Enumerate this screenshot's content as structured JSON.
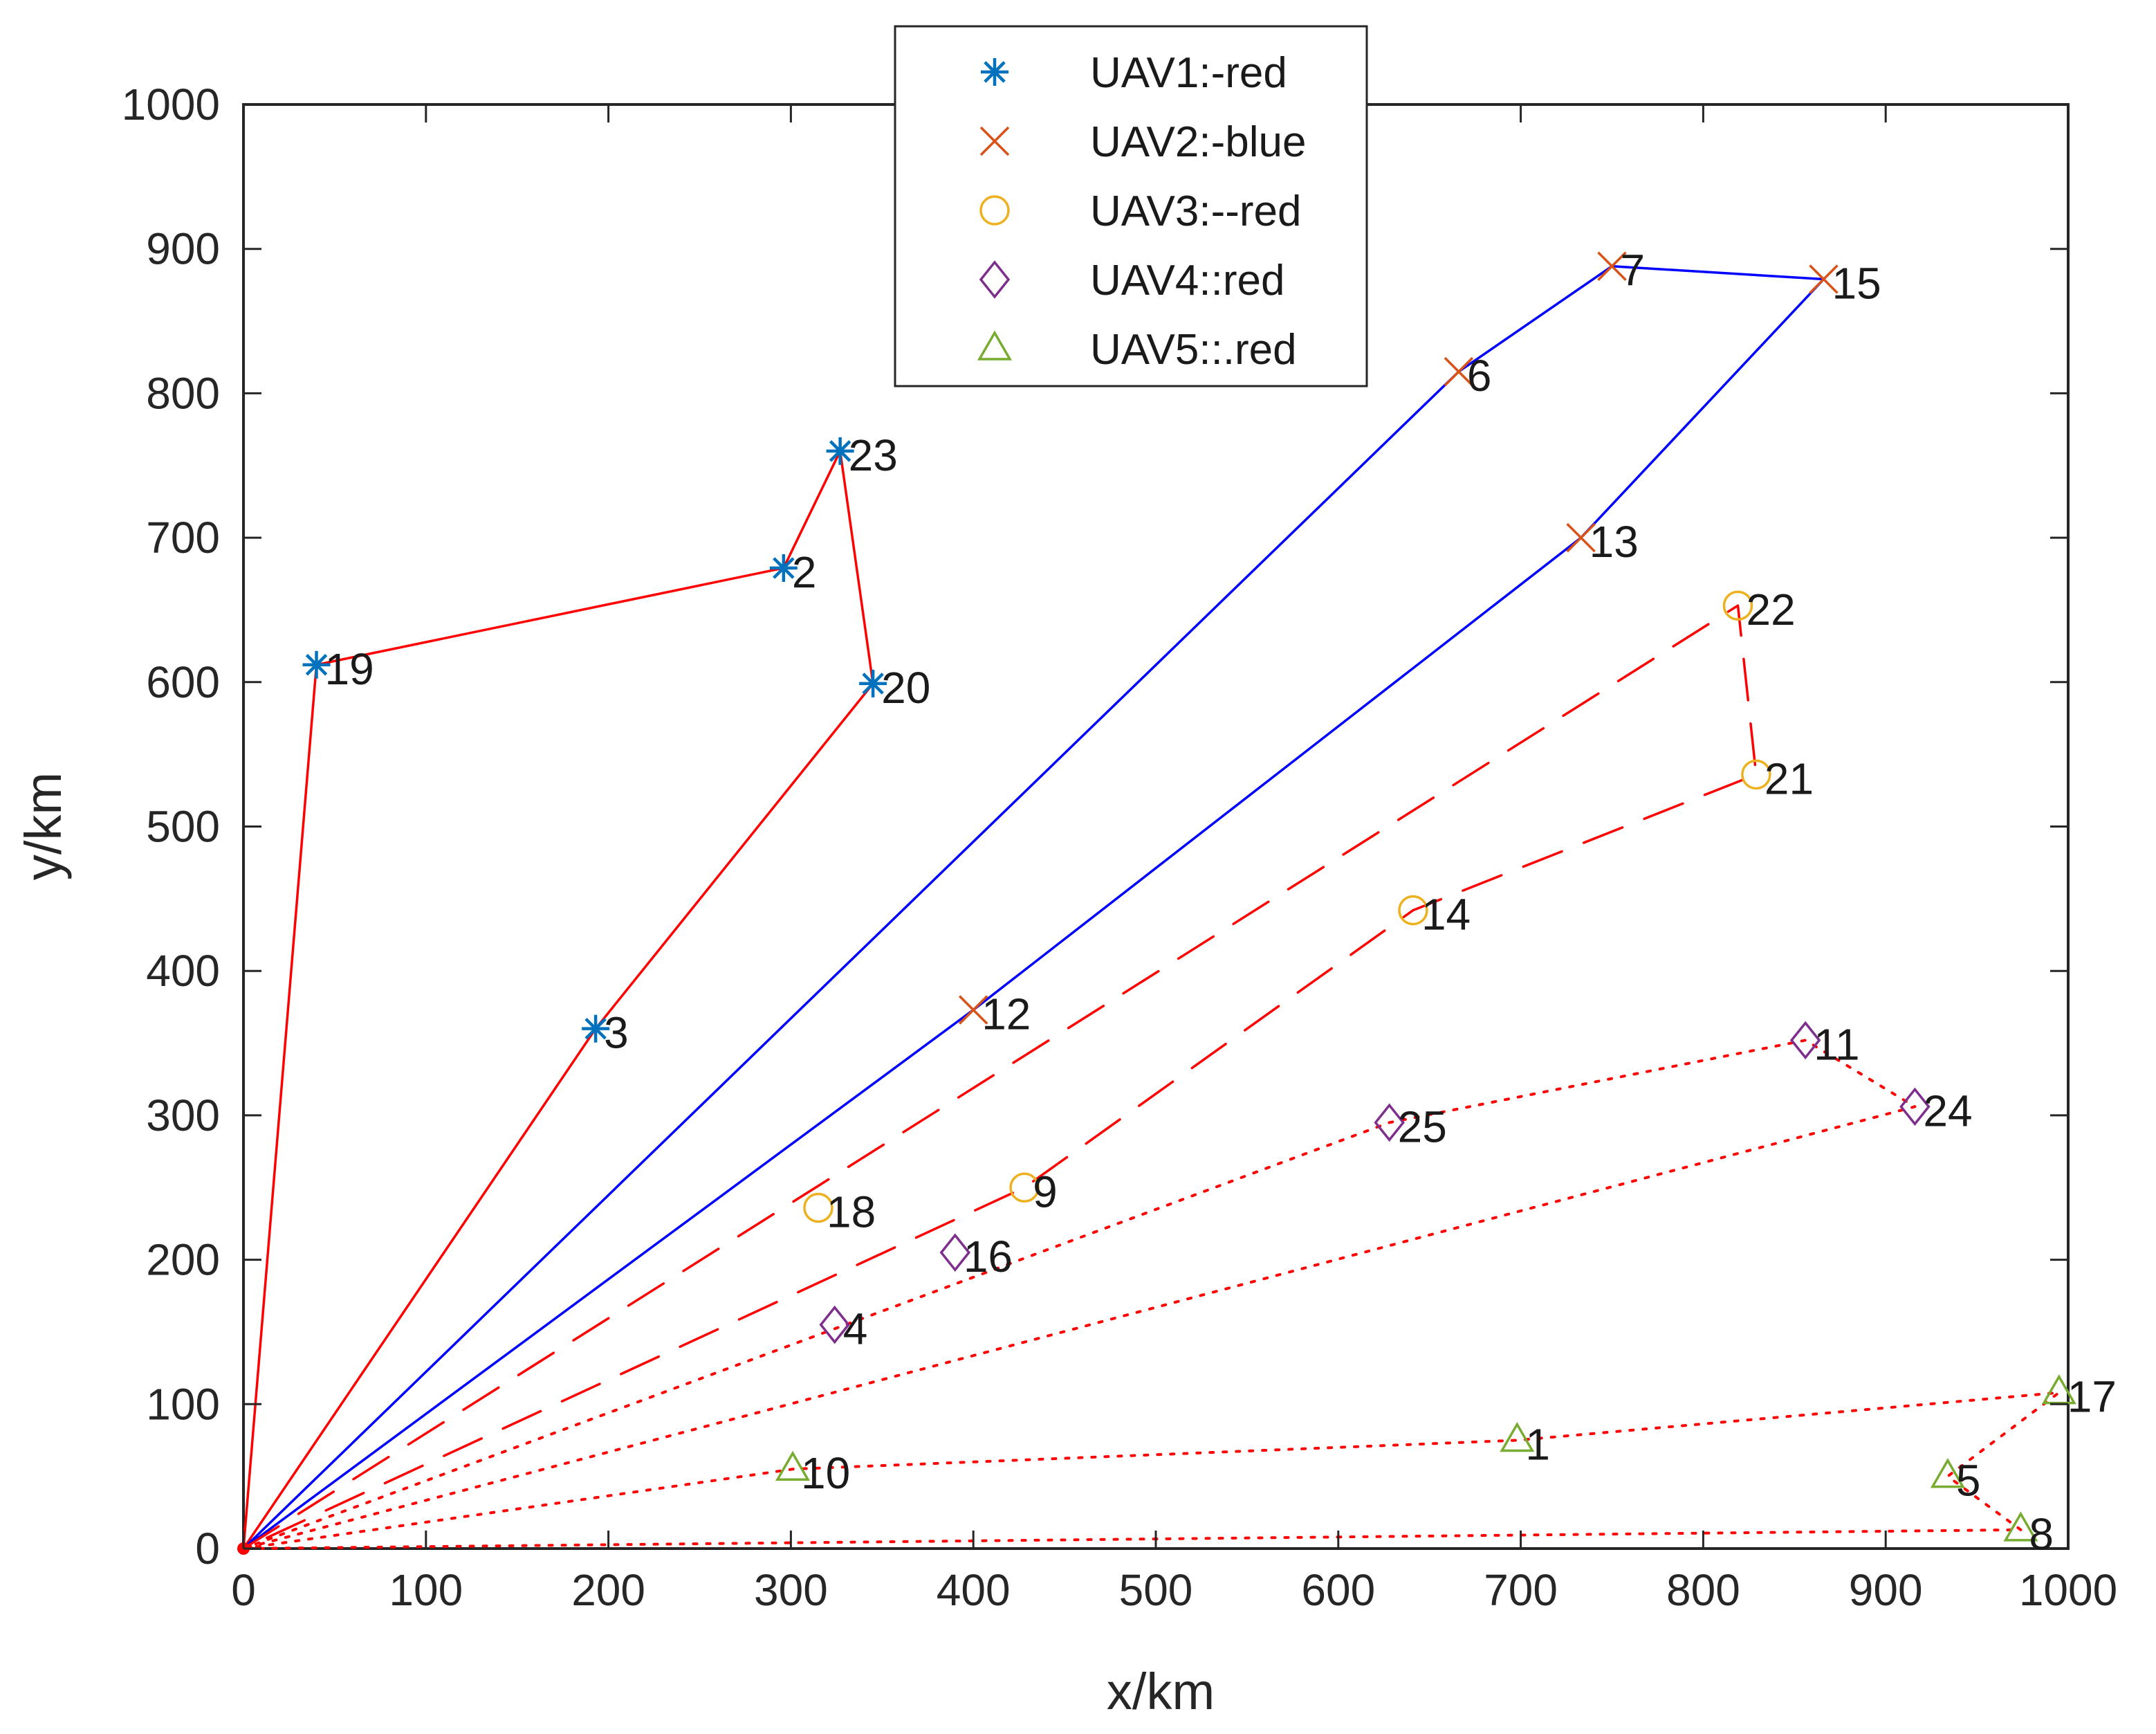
{
  "chart_data": {
    "type": "line",
    "title": "",
    "xlabel": "x/km",
    "ylabel": "y/km",
    "xlim": [
      0,
      1000
    ],
    "ylim": [
      0,
      1000
    ],
    "xticks": [
      "0",
      "100",
      "200",
      "300",
      "400",
      "500",
      "600",
      "700",
      "800",
      "900",
      "1000"
    ],
    "yticks": [
      "0",
      "100",
      "200",
      "300",
      "400",
      "500",
      "600",
      "700",
      "800",
      "900",
      "1000"
    ],
    "grid": false,
    "legend_position": "top-center",
    "depot": {
      "x": 0,
      "y": 0
    },
    "series": [
      {
        "name": "UAV1:-red",
        "marker": "asterisk",
        "marker_color": "#0072bd",
        "line_color": "#ff0000",
        "line_style": "solid",
        "route": [
          0,
          19,
          2,
          23,
          20,
          3,
          0
        ]
      },
      {
        "name": "UAV2:-blue",
        "marker": "x",
        "marker_color": "#d95319",
        "line_color": "#0000ff",
        "line_style": "solid",
        "route": [
          0,
          6,
          7,
          15,
          13,
          12,
          0
        ]
      },
      {
        "name": "UAV3:--red",
        "marker": "circle",
        "marker_color": "#edb120",
        "line_color": "#ff0000",
        "line_style": "dashed",
        "route": [
          0,
          22,
          21,
          14,
          9,
          0
        ],
        "extra_points": [
          18
        ]
      },
      {
        "name": "UAV4::red",
        "marker": "diamond",
        "marker_color": "#7e2f8e",
        "line_color": "#ff0000",
        "line_style": "dotted",
        "route": [
          0,
          25,
          11,
          24,
          0
        ],
        "extra_points": [
          16,
          4
        ]
      },
      {
        "name": "UAV5::.red",
        "marker": "triangle",
        "marker_color": "#77ac30",
        "line_color": "#ff0000",
        "line_style": "dotted",
        "route": [
          0,
          10,
          1,
          17,
          5,
          8,
          0
        ]
      }
    ],
    "points": {
      "1": {
        "label": "1",
        "x": 698,
        "y": 75
      },
      "2": {
        "label": "2",
        "x": 296,
        "y": 679
      },
      "3": {
        "label": "3",
        "x": 193,
        "y": 360
      },
      "4": {
        "label": "4",
        "x": 324,
        "y": 155
      },
      "5": {
        "label": "5",
        "x": 934,
        "y": 50
      },
      "6": {
        "label": "6",
        "x": 666,
        "y": 815
      },
      "7": {
        "label": "7",
        "x": 750,
        "y": 888
      },
      "8": {
        "label": "8",
        "x": 974,
        "y": 13
      },
      "9": {
        "label": "9",
        "x": 428,
        "y": 250
      },
      "10": {
        "label": "10",
        "x": 301,
        "y": 55
      },
      "11": {
        "label": "11",
        "x": 856,
        "y": 352
      },
      "12": {
        "label": "12",
        "x": 400,
        "y": 373
      },
      "13": {
        "label": "13",
        "x": 733,
        "y": 700
      },
      "14": {
        "label": "14",
        "x": 641,
        "y": 442
      },
      "15": {
        "label": "15",
        "x": 866,
        "y": 879
      },
      "16": {
        "label": "16",
        "x": 390,
        "y": 205
      },
      "17": {
        "label": "17",
        "x": 995,
        "y": 108
      },
      "18": {
        "label": "18",
        "x": 315,
        "y": 236
      },
      "19": {
        "label": "19",
        "x": 40,
        "y": 612
      },
      "20": {
        "label": "20",
        "x": 345,
        "y": 599
      },
      "21": {
        "label": "21",
        "x": 829,
        "y": 536
      },
      "22": {
        "label": "22",
        "x": 819,
        "y": 653
      },
      "23": {
        "label": "23",
        "x": 327,
        "y": 760
      },
      "24": {
        "label": "24",
        "x": 916,
        "y": 306
      },
      "25": {
        "label": "25",
        "x": 628,
        "y": 295
      }
    }
  }
}
